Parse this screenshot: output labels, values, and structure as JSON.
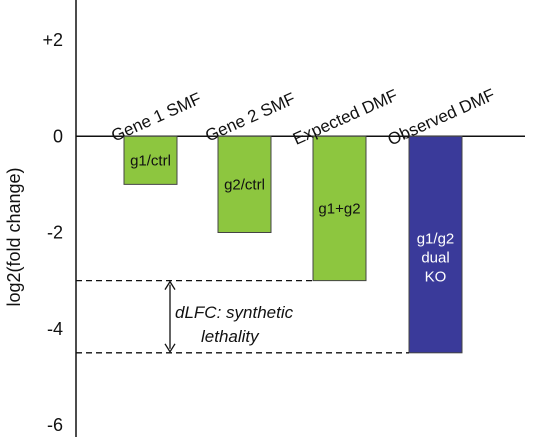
{
  "chart_data": {
    "type": "bar",
    "ylabel": "log2(fold change)",
    "ylim": [
      -6,
      2
    ],
    "y_ticks": [
      {
        "value": 2,
        "label": "+2"
      },
      {
        "value": 0,
        "label": "0"
      },
      {
        "value": -2,
        "label": "-2"
      },
      {
        "value": -4,
        "label": "-4"
      },
      {
        "value": -6,
        "label": "-6"
      }
    ],
    "categories": [
      "Gene 1 SMF",
      "Gene 2 SMF",
      "Expected DMF",
      "Observed DMF"
    ],
    "values": [
      -1,
      -2,
      -3,
      -4.5
    ],
    "bar_labels": [
      [
        "g1/ctrl"
      ],
      [
        "g2/ctrl"
      ],
      [
        "g1+g2"
      ],
      [
        "g1/g2",
        "dual",
        "KO"
      ]
    ],
    "colors": [
      "#8dc63f",
      "#8dc63f",
      "#8dc63f",
      "#3a3a9a"
    ],
    "annotation": {
      "lines": [
        "dLFC: synthetic",
        "lethality"
      ],
      "from_value": -3,
      "to_value": -4.5
    },
    "grid": false,
    "legend": "none"
  }
}
